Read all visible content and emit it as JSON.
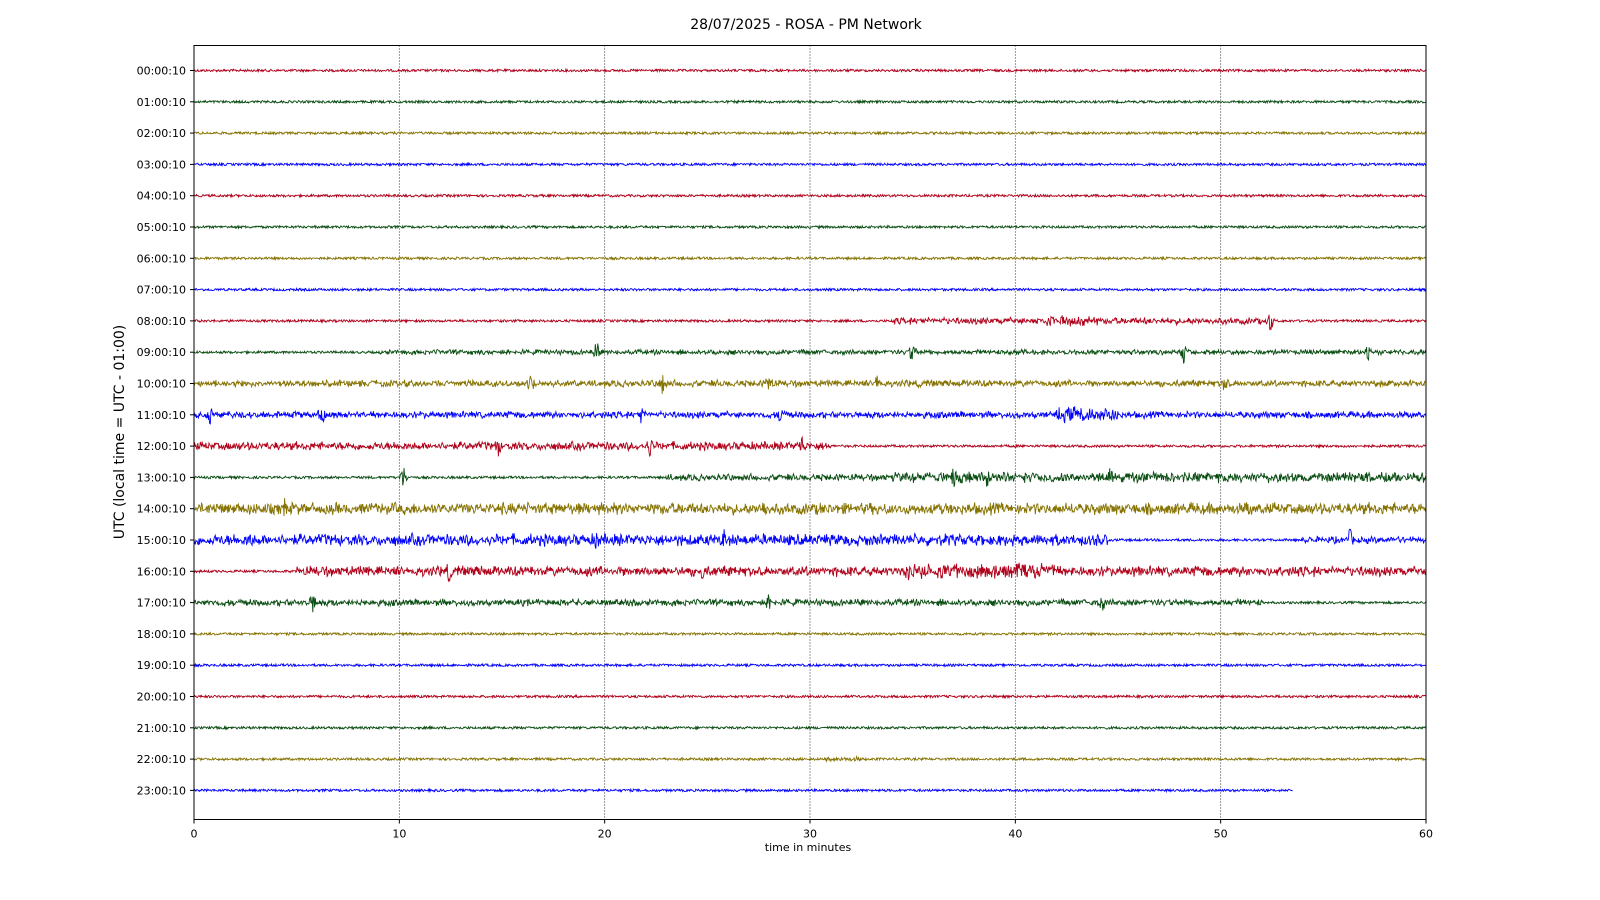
{
  "chart_data": {
    "type": "line",
    "title": "28/07/2025 - ROSA - PM Network",
    "xlabel": "time in minutes",
    "ylabel": "UTC (local time = UTC - 01:00)",
    "xlim": [
      0,
      60
    ],
    "xticks": [
      0,
      10,
      20,
      30,
      40,
      50,
      60
    ],
    "grid": "vertical dotted",
    "colors": [
      "#b0001a",
      "#0a4d12",
      "#857200",
      "#0000ff"
    ],
    "traces": [
      {
        "label": "00:00:10",
        "end": 60,
        "activity": []
      },
      {
        "label": "01:00:10",
        "end": 60,
        "activity": []
      },
      {
        "label": "02:00:10",
        "end": 60,
        "activity": []
      },
      {
        "label": "03:00:10",
        "end": 60,
        "activity": []
      },
      {
        "label": "04:00:10",
        "end": 60,
        "activity": []
      },
      {
        "label": "05:00:10",
        "end": 60,
        "activity": []
      },
      {
        "label": "06:00:10",
        "end": 60,
        "activity": []
      },
      {
        "label": "07:00:10",
        "end": 60,
        "activity": []
      },
      {
        "label": "08:00:10",
        "end": 60,
        "activity": [
          [
            34,
            52,
            4
          ],
          [
            41,
            44,
            6
          ]
        ],
        "spikes": [
          52.4
        ]
      },
      {
        "label": "09:00:10",
        "end": 60,
        "activity": [
          [
            9,
            60,
            3
          ]
        ],
        "spikes": [
          19.6,
          35,
          48.2,
          57.2
        ]
      },
      {
        "label": "10:00:10",
        "end": 60,
        "activity": [
          [
            0,
            60,
            4
          ]
        ],
        "spikes": [
          16.4,
          22.8,
          28,
          33.3,
          50.2
        ]
      },
      {
        "label": "11:00:10",
        "end": 60,
        "activity": [
          [
            0,
            60,
            4
          ],
          [
            42,
            45,
            9
          ]
        ],
        "spikes": [
          0.8,
          6.2,
          21.8,
          28.6
        ]
      },
      {
        "label": "12:00:10",
        "end": 60,
        "activity": [
          [
            0,
            31,
            5
          ]
        ],
        "spikes": [
          14.8,
          22.2,
          29.6
        ]
      },
      {
        "label": "13:00:10",
        "end": 60,
        "activity": [
          [
            23,
            60,
            4
          ],
          [
            34,
            60,
            6
          ]
        ],
        "spikes": [
          10.2,
          37,
          38.6,
          44.6
        ]
      },
      {
        "label": "14:00:10",
        "end": 60,
        "activity": [
          [
            0,
            60,
            7
          ]
        ],
        "spikes": [
          4.4,
          27.8,
          51.3
        ]
      },
      {
        "label": "15:00:10",
        "end": 60,
        "activity": [
          [
            0,
            44.5,
            7
          ],
          [
            54,
            60,
            4
          ]
        ],
        "spikes": [
          2.7,
          19.6,
          25.8,
          56.3
        ]
      },
      {
        "label": "16:00:10",
        "end": 60,
        "activity": [
          [
            5,
            60,
            6
          ],
          [
            34.5,
            42,
            9
          ]
        ],
        "spikes": [
          12.4,
          24.8,
          39.2
        ]
      },
      {
        "label": "17:00:10",
        "end": 60,
        "activity": [
          [
            0,
            52,
            4
          ]
        ],
        "spikes": [
          5.8,
          28,
          44.2
        ]
      },
      {
        "label": "18:00:10",
        "end": 60,
        "activity": []
      },
      {
        "label": "19:00:10",
        "end": 60,
        "activity": []
      },
      {
        "label": "20:00:10",
        "end": 60,
        "activity": []
      },
      {
        "label": "21:00:10",
        "end": 60,
        "activity": []
      },
      {
        "label": "22:00:10",
        "end": 60,
        "activity": [
          [
            30.8,
            32.5,
            3
          ]
        ]
      },
      {
        "label": "23:00:10",
        "end": 53.5,
        "activity": []
      }
    ]
  }
}
